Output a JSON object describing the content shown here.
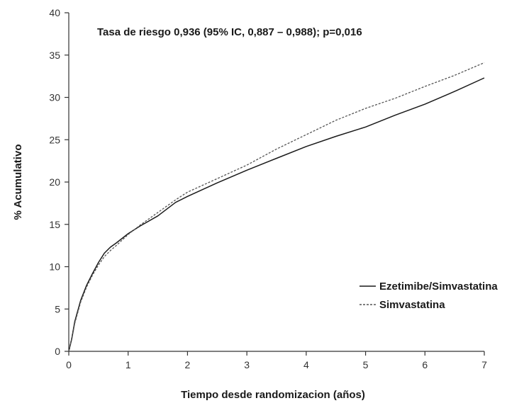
{
  "chart_data": {
    "type": "line",
    "annotation": "Tasa de riesgo 0,936 (95% IC, 0,887 – 0,988); p=0,016",
    "xlabel": "Tiempo desde randomizacion (años)",
    "ylabel": "% Acumulativo",
    "xlim": [
      0,
      7
    ],
    "ylim": [
      0,
      40
    ],
    "x_ticks": [
      "0",
      "1",
      "2",
      "3",
      "4",
      "5",
      "6",
      "7"
    ],
    "y_ticks": [
      "0",
      "5",
      "10",
      "15",
      "20",
      "25",
      "30",
      "35",
      "40"
    ],
    "legend_position": "right",
    "series": [
      {
        "name": "Ezetimibe/Simvastatina",
        "style": "solid",
        "color": "#1a1a1a",
        "x": [
          0,
          0.05,
          0.1,
          0.2,
          0.3,
          0.4,
          0.5,
          0.6,
          0.7,
          0.8,
          1.0,
          1.2,
          1.5,
          1.8,
          2.0,
          2.5,
          3.0,
          3.5,
          4.0,
          4.5,
          5.0,
          5.5,
          6.0,
          6.5,
          7.0
        ],
        "y": [
          0,
          1.5,
          3.5,
          6.0,
          7.8,
          9.2,
          10.5,
          11.6,
          12.3,
          12.8,
          13.9,
          14.8,
          16.0,
          17.6,
          18.3,
          19.9,
          21.4,
          22.8,
          24.2,
          25.4,
          26.5,
          27.9,
          29.2,
          30.7,
          32.3
        ]
      },
      {
        "name": "Simvastatina",
        "style": "dashed",
        "color": "#555555",
        "x": [
          0,
          0.05,
          0.1,
          0.2,
          0.3,
          0.4,
          0.5,
          0.6,
          0.7,
          0.8,
          1.0,
          1.2,
          1.5,
          1.8,
          2.0,
          2.5,
          3.0,
          3.5,
          4.0,
          4.5,
          5.0,
          5.5,
          6.0,
          6.5,
          7.0
        ],
        "y": [
          0,
          1.4,
          3.3,
          5.8,
          7.6,
          9.0,
          10.2,
          11.2,
          11.9,
          12.5,
          13.8,
          14.9,
          16.4,
          17.9,
          18.8,
          20.4,
          22.0,
          23.9,
          25.6,
          27.3,
          28.7,
          29.9,
          31.3,
          32.6,
          34.1
        ]
      }
    ]
  }
}
